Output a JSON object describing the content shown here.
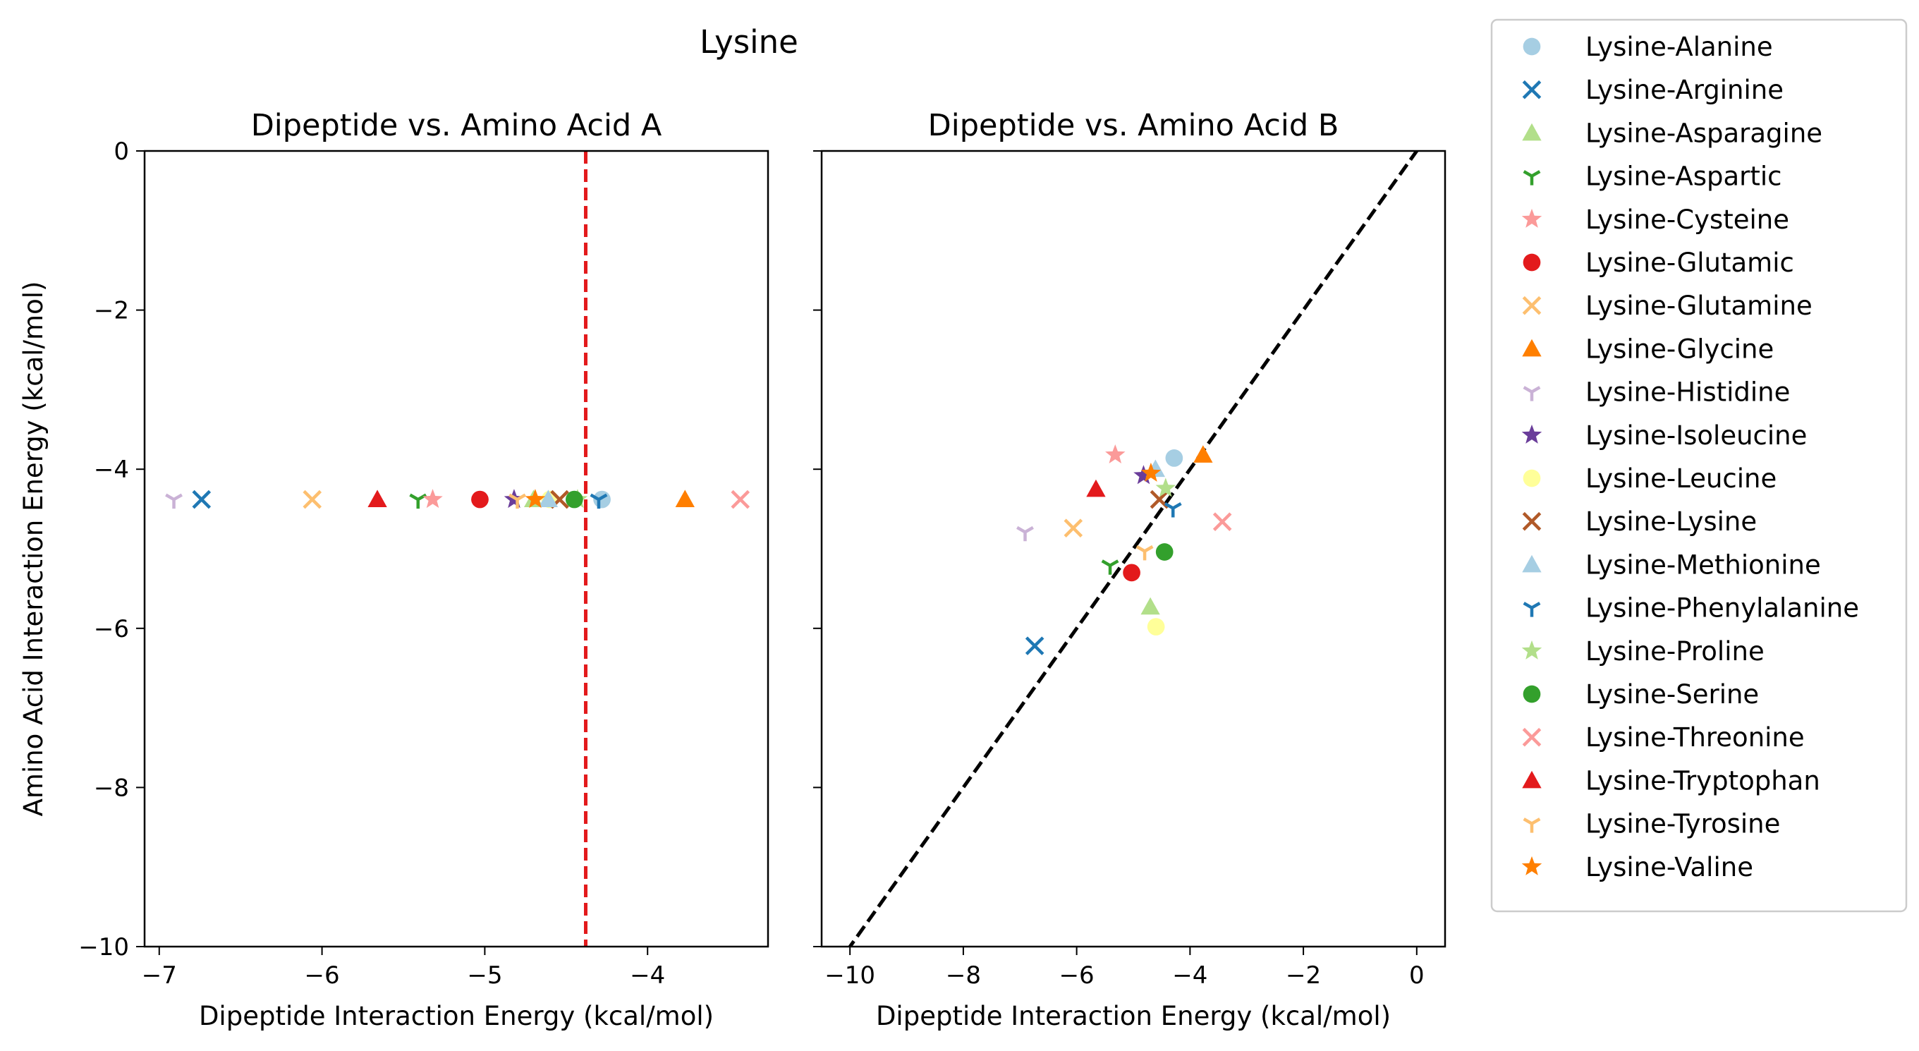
{
  "chart_data": {
    "type": "scatter",
    "title": "Lysine",
    "legend_position": "outside-right",
    "grid": false,
    "series": [
      {
        "name": "Lysine-Alanine",
        "marker": "circle",
        "color": "#a6cee3",
        "x": -4.28,
        "y_A": -4.38,
        "y_B": -3.86
      },
      {
        "name": "Lysine-Arginine",
        "marker": "x",
        "color": "#1f78b4",
        "x": -6.74,
        "y_A": -4.38,
        "y_B": -6.22
      },
      {
        "name": "Lysine-Asparagine",
        "marker": "triangle",
        "color": "#b2df8a",
        "x": -4.7,
        "y_A": -4.38,
        "y_B": -5.73
      },
      {
        "name": "Lysine-Aspartic",
        "marker": "tri_down",
        "color": "#33a02c",
        "x": -5.41,
        "y_A": -4.38,
        "y_B": -5.21
      },
      {
        "name": "Lysine-Cysteine",
        "marker": "star",
        "color": "#fb9a99",
        "x": -5.32,
        "y_A": -4.38,
        "y_B": -3.82
      },
      {
        "name": "Lysine-Glutamic",
        "marker": "circle",
        "color": "#e31a1c",
        "x": -5.03,
        "y_A": -4.38,
        "y_B": -5.3
      },
      {
        "name": "Lysine-Glutamine",
        "marker": "x",
        "color": "#fdbf6f",
        "x": -6.06,
        "y_A": -4.38,
        "y_B": -4.74
      },
      {
        "name": "Lysine-Glycine",
        "marker": "triangle",
        "color": "#ff7f00",
        "x": -3.77,
        "y_A": -4.38,
        "y_B": -3.82
      },
      {
        "name": "Lysine-Histidine",
        "marker": "tri_down",
        "color": "#cab2d6",
        "x": -6.91,
        "y_A": -4.38,
        "y_B": -4.79
      },
      {
        "name": "Lysine-Isoleucine",
        "marker": "star",
        "color": "#6a3d9a",
        "x": -4.82,
        "y_A": -4.38,
        "y_B": -4.08
      },
      {
        "name": "Lysine-Leucine",
        "marker": "circle",
        "color": "#ffff99",
        "x": -4.6,
        "y_A": -4.38,
        "y_B": -5.98
      },
      {
        "name": "Lysine-Lysine",
        "marker": "x",
        "color": "#b15928",
        "x": -4.54,
        "y_A": -4.38,
        "y_B": -4.38
      },
      {
        "name": "Lysine-Methionine",
        "marker": "triangle",
        "color": "#a6cee3",
        "x": -4.61,
        "y_A": -4.38,
        "y_B": -4.0
      },
      {
        "name": "Lysine-Phenylalanine",
        "marker": "tri_down",
        "color": "#1f78b4",
        "x": -4.3,
        "y_A": -4.38,
        "y_B": -4.49
      },
      {
        "name": "Lysine-Proline",
        "marker": "star",
        "color": "#b2df8a",
        "x": -4.43,
        "y_A": -4.38,
        "y_B": -4.24
      },
      {
        "name": "Lysine-Serine",
        "marker": "circle",
        "color": "#33a02c",
        "x": -4.45,
        "y_A": -4.38,
        "y_B": -5.04
      },
      {
        "name": "Lysine-Threonine",
        "marker": "x",
        "color": "#fb9a99",
        "x": -3.43,
        "y_A": -4.38,
        "y_B": -4.66
      },
      {
        "name": "Lysine-Tryptophan",
        "marker": "triangle",
        "color": "#e31a1c",
        "x": -5.66,
        "y_A": -4.38,
        "y_B": -4.25
      },
      {
        "name": "Lysine-Tyrosine",
        "marker": "tri_down",
        "color": "#fdbf6f",
        "x": -4.8,
        "y_A": -4.38,
        "y_B": -5.03
      },
      {
        "name": "Lysine-Valine",
        "marker": "star",
        "color": "#ff7f00",
        "x": -4.69,
        "y_A": -4.38,
        "y_B": -4.05
      }
    ],
    "panels": [
      {
        "title": "Dipeptide vs. Amino Acid A",
        "xlabel": "Dipeptide Interaction Energy (kcal/mol)",
        "ylabel": "Amino Acid Interaction Energy (kcal/mol)",
        "xlim": [
          -7.09,
          -3.26
        ],
        "ylim": [
          -10,
          0
        ],
        "xticks": [
          -7,
          -6,
          -5,
          -4
        ],
        "xtick_labels": [
          "−7",
          "−6",
          "−5",
          "−4"
        ],
        "yticks": [
          0,
          -2,
          -4,
          -6,
          -8,
          -10
        ],
        "ytick_labels": [
          "0",
          "−2",
          "−4",
          "−6",
          "−8",
          "−10"
        ],
        "y_key": "y_A",
        "reference_line": {
          "type": "vertical",
          "x": -4.38,
          "color": "#e31a1c",
          "style": "dashed"
        }
      },
      {
        "title": "Dipeptide vs. Amino Acid B",
        "xlabel": "Dipeptide Interaction Energy (kcal/mol)",
        "ylabel": "",
        "xlim": [
          -10.5,
          0.5
        ],
        "ylim": [
          -10,
          0
        ],
        "xticks": [
          -10,
          -8,
          -6,
          -4,
          -2,
          0
        ],
        "xtick_labels": [
          "−10",
          "−8",
          "−6",
          "−4",
          "−2",
          "0"
        ],
        "yticks": [
          0,
          -2,
          -4,
          -6,
          -8,
          -10
        ],
        "ytick_labels": [],
        "y_key": "y_B",
        "reference_line": {
          "type": "identity",
          "color": "#000000",
          "style": "dashed"
        }
      }
    ]
  }
}
